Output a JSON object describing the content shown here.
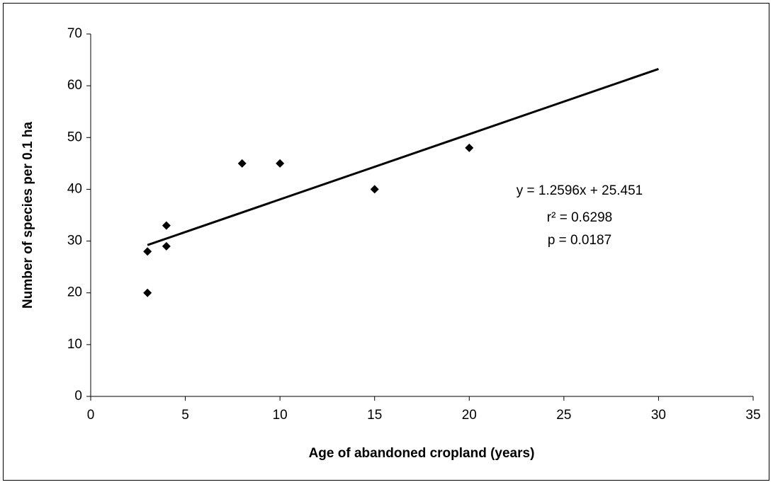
{
  "chart_data": {
    "type": "scatter",
    "x_label": "Age of abandoned cropland (years)",
    "y_label": "Number of species per 0.1 ha",
    "x": [
      3,
      3,
      4,
      4,
      8,
      10,
      15,
      20
    ],
    "values": [
      28,
      20,
      33,
      29,
      45,
      45,
      40,
      48
    ],
    "color": "#000000",
    "trendline": {
      "x": [
        3,
        30
      ],
      "y": [
        29.23,
        63.24
      ]
    },
    "annotations": [
      "y = 1.2596x + 25.451",
      "r² = 0.6298",
      "p = 0.0187"
    ],
    "xlim": [
      0,
      35
    ],
    "xticks": [
      0,
      5,
      10,
      15,
      20,
      25,
      30,
      35
    ],
    "ylim": [
      0,
      70
    ],
    "yticks": [
      0,
      10,
      20,
      30,
      40,
      50,
      60,
      70
    ],
    "grid": false
  }
}
